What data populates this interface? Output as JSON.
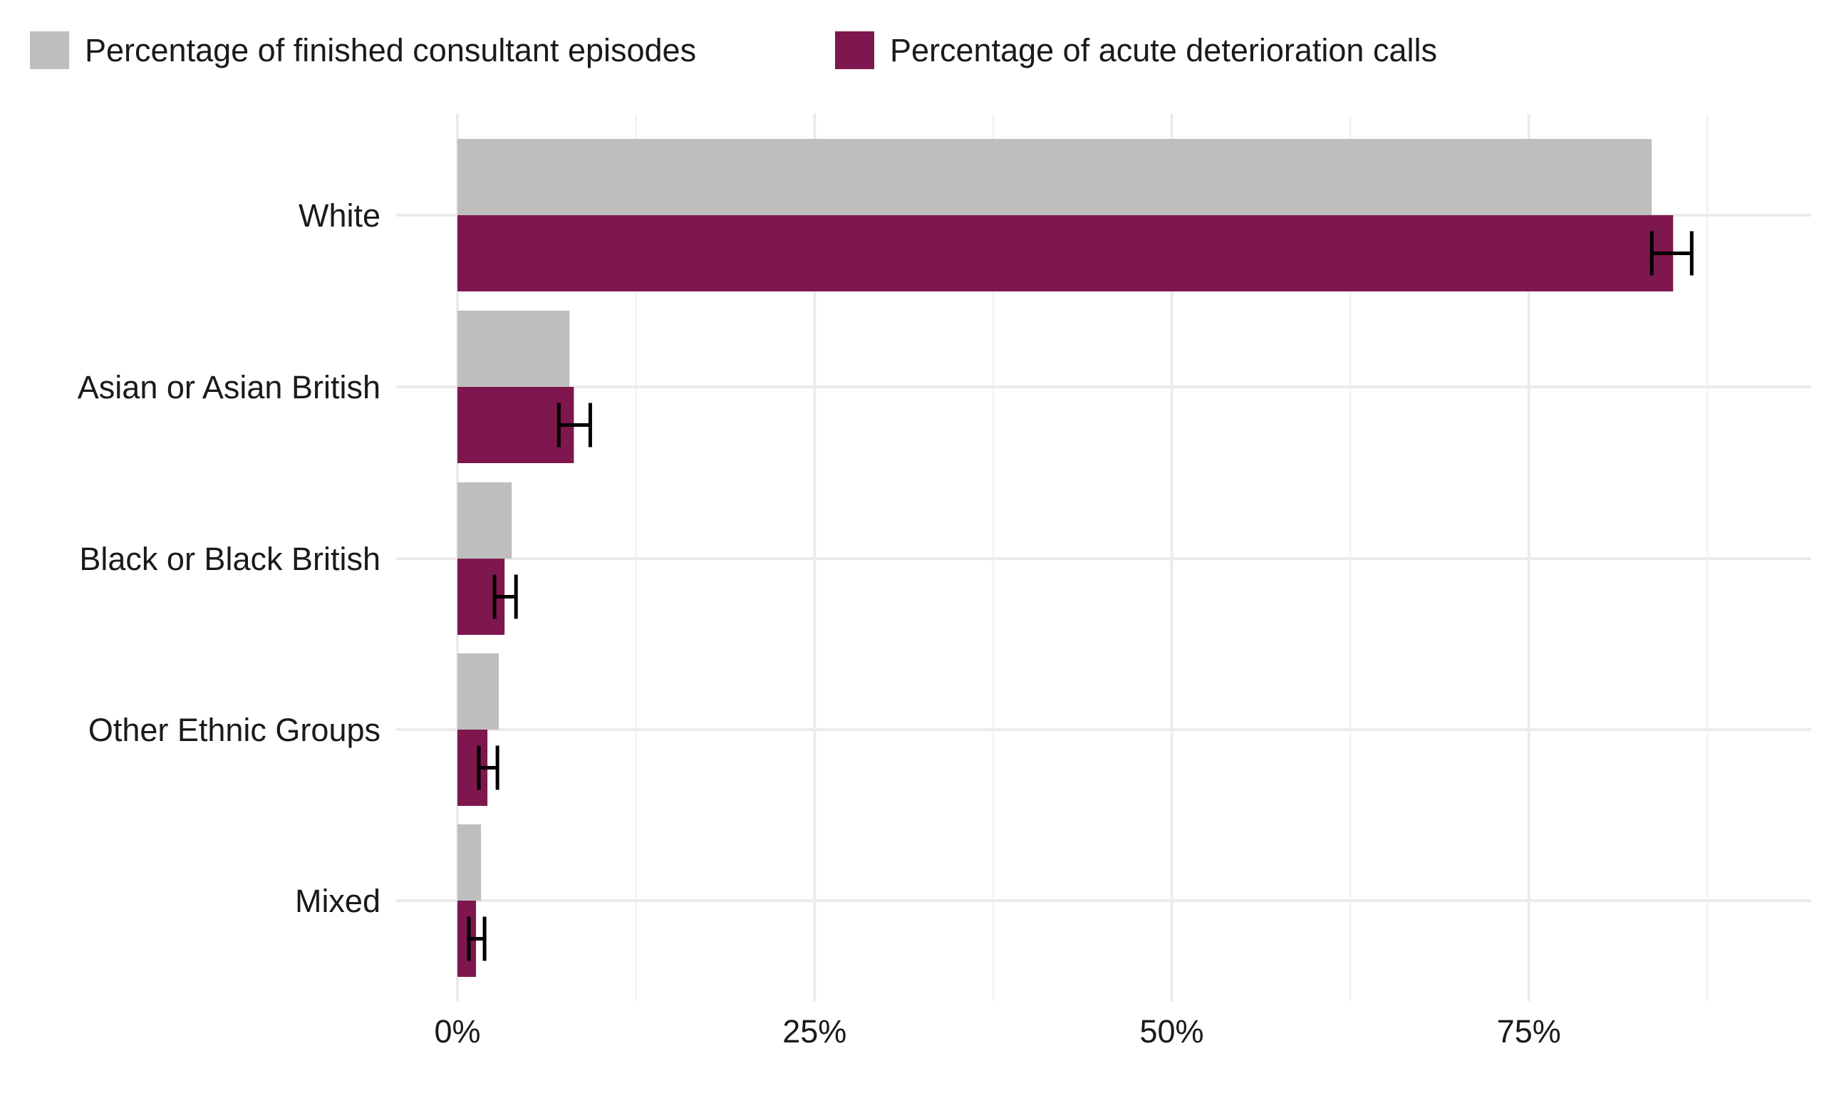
{
  "chart_data": {
    "type": "bar",
    "orientation": "horizontal",
    "title": "",
    "xlabel": "",
    "ylabel": "",
    "categories": [
      "White",
      "Asian or Asian British",
      "Black or Black British",
      "Other Ethnic Groups",
      "Mixed"
    ],
    "series": [
      {
        "name": "Percentage of finished consultant episodes",
        "color": "#BEBEBE",
        "values": [
          83.6,
          7.85,
          3.8,
          2.9,
          1.65
        ]
      },
      {
        "name": "Percentage of acute deterioration calls",
        "color": "#7E174D",
        "values": [
          85.1,
          8.15,
          3.3,
          2.1,
          1.3
        ],
        "error_low": [
          83.6,
          7.1,
          2.6,
          1.5,
          0.8
        ],
        "error_high": [
          86.4,
          9.3,
          4.1,
          2.8,
          1.9
        ]
      }
    ],
    "xlim": [
      0,
      93
    ],
    "xticks": [
      0,
      25,
      50,
      75
    ],
    "xtick_labels": [
      "0%",
      "25%",
      "50%",
      "75%"
    ],
    "minor_gridlines": [
      12.5,
      37.5,
      62.5,
      87.5
    ],
    "grid": true,
    "legend_position": "top-left"
  }
}
